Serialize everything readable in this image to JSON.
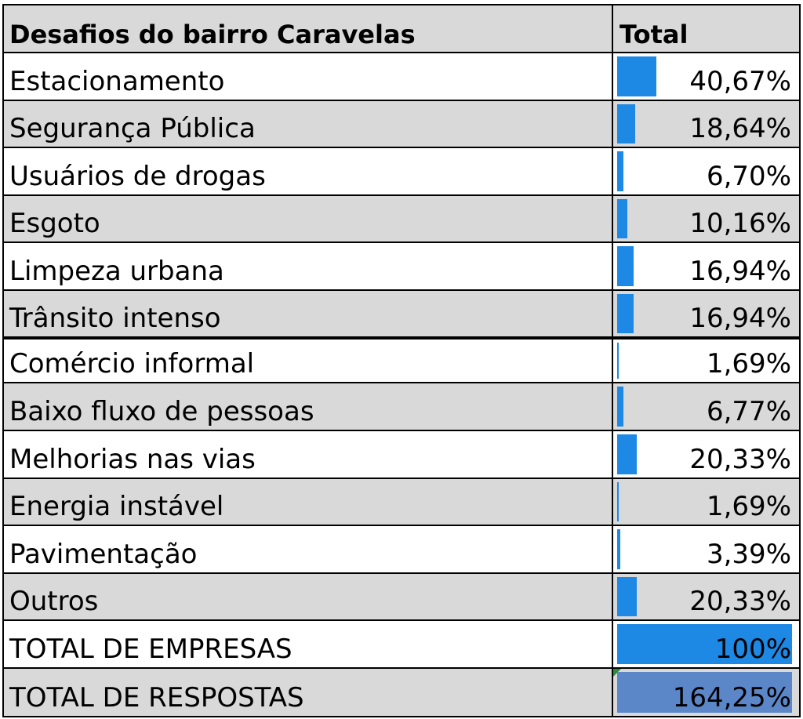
{
  "chart_data": {
    "type": "table",
    "title": "Desafios do bairro Caravelas",
    "value_header": "Total",
    "rows": [
      {
        "label": "Estacionamento",
        "value": 40.67,
        "text": "40,67%"
      },
      {
        "label": "Segurança Pública",
        "value": 18.64,
        "text": "18,64%"
      },
      {
        "label": "Usuários de drogas",
        "value": 6.7,
        "text": "6,70%"
      },
      {
        "label": "Esgoto",
        "value": 10.16,
        "text": "10,16%"
      },
      {
        "label": "Limpeza urbana",
        "value": 16.94,
        "text": "16,94%"
      },
      {
        "label": "Trânsito intenso",
        "value": 16.94,
        "text": "16,94%"
      },
      {
        "label": "Comércio informal",
        "value": 1.69,
        "text": "1,69%"
      },
      {
        "label": "Baixo fluxo de pessoas",
        "value": 6.77,
        "text": "6,77%"
      },
      {
        "label": "Melhorias nas vias",
        "value": 20.33,
        "text": "20,33%"
      },
      {
        "label": "Energia instável",
        "value": 1.69,
        "text": "1,69%"
      },
      {
        "label": "Pavimentação",
        "value": 3.39,
        "text": "3,39%"
      },
      {
        "label": "Outros",
        "value": 20.33,
        "text": "20,33%"
      }
    ],
    "totals": [
      {
        "label": "TOTAL DE EMPRESAS",
        "value": 100,
        "text": "100%"
      },
      {
        "label": "TOTAL DE RESPOSTAS",
        "value": 164.25,
        "text": "164,25%"
      }
    ],
    "bar_color": "#1e88e5",
    "total_bar_color": "#5b87c9",
    "stripe_color": "#d9d9d9"
  }
}
